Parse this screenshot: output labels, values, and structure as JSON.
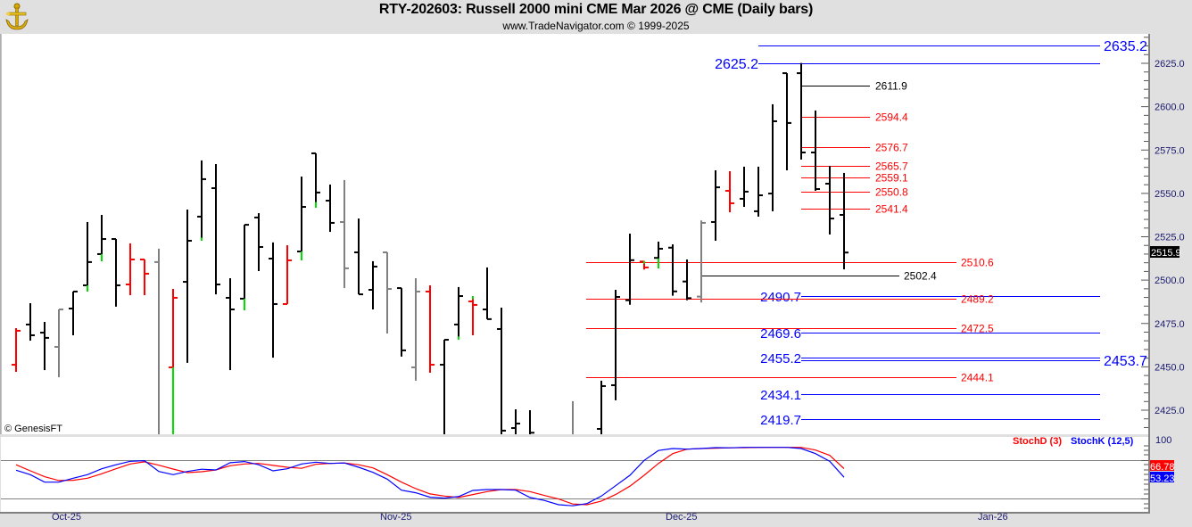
{
  "header": {
    "title": "RTY-202603:  Russell 2000 mini CME Mar 2026 @ CME  (Daily bars)",
    "subtitle": "www.TradeNavigator.com © 1999-2025",
    "logo_icon": "gold-anchor-logo-icon"
  },
  "watermark": "© GenesisFT",
  "colors": {
    "up_bar": "#000000",
    "down_bar": "#ff0000",
    "neutral_bar": "#808080",
    "green_mark": "#00e000",
    "level_blue": "#0000ff",
    "level_red": "#ff0000",
    "level_black": "#000000",
    "stochD": "#ff0000",
    "stochK": "#0000ff"
  },
  "chart_data": [
    {
      "type": "ohlc",
      "ylim": [
        2400,
        2645
      ],
      "yticks": [
        "2625.0",
        "2600.0",
        "2575.0",
        "2550.0",
        "2525.0",
        "2500.0",
        "2475.0",
        "2450.0",
        "2425.0"
      ],
      "ytick_values": [
        2625,
        2600,
        2575,
        2550,
        2525,
        2500,
        2475,
        2450,
        2425
      ],
      "xtick_labels": [
        "Oct-25",
        "Nov-25",
        "Dec-25",
        "Jan-26"
      ],
      "last_price": "2515.9",
      "bar_colors": {
        "k": "#000000",
        "r": "#ff0000",
        "s": "#808080"
      },
      "bars_ohlc_color_green": [
        [
          2451.2,
          2472.3,
          2447.1,
          2470.8,
          "r"
        ],
        [
          2474.4,
          2486.7,
          2465.1,
          2468.2,
          "k"
        ],
        [
          2469.7,
          2475.9,
          2448.1,
          2466.7,
          "k"
        ],
        [
          2461.5,
          2483.1,
          2444.0,
          2483.1,
          "s"
        ],
        [
          2483.6,
          2493.4,
          2468.2,
          2493.4,
          "k"
        ],
        [
          2497.0,
          2533.5,
          2493.4,
          2510.4,
          "k",
          [
            2493.4,
            2497.0
          ]
        ],
        [
          2515.0,
          2537.6,
          2510.9,
          2523.7,
          "k",
          [
            2510.9,
            2515.0
          ]
        ],
        [
          2523.7,
          2523.7,
          2484.7,
          2497.0,
          "k"
        ],
        [
          2497.5,
          2521.2,
          2491.3,
          2511.9,
          "r"
        ],
        [
          2511.9,
          2511.9,
          2491.3,
          2503.7,
          "r"
        ],
        [
          2510.4,
          2518.1,
          2400,
          2410,
          "s"
        ],
        [
          2449.7,
          2494.9,
          2400,
          2489.8,
          "r",
          [
            2400,
            2449.7
          ]
        ],
        [
          2499.0,
          2540.7,
          2452.3,
          2522.7,
          "k"
        ],
        [
          2536.6,
          2569.0,
          2522.7,
          2558.2,
          "k",
          [
            2522.7,
            2524.5
          ]
        ],
        [
          2553.0,
          2566.9,
          2491.8,
          2497.5,
          "k"
        ],
        [
          2489.8,
          2501.1,
          2448.1,
          2483.1,
          "k"
        ],
        [
          2489.3,
          2531.9,
          2482.6,
          2531.9,
          "k",
          [
            2482.6,
            2489.3
          ]
        ],
        [
          2536.1,
          2538.6,
          2505.2,
          2519.1,
          "k"
        ],
        [
          2512.4,
          2521.7,
          2455.3,
          2486.2,
          "k"
        ],
        [
          2486.2,
          2520.1,
          2486.2,
          2511.4,
          "r"
        ],
        [
          2516.5,
          2559.7,
          2511.4,
          2542.2,
          "k",
          [
            2511.4,
            2516.5
          ]
        ],
        [
          2573.1,
          2573.1,
          2541.7,
          2550.5,
          "k",
          [
            2541.7,
            2545.0
          ]
        ],
        [
          2545.8,
          2555.1,
          2527.8,
          2533.0,
          "k"
        ],
        [
          2533.5,
          2557.7,
          2495.4,
          2506.8,
          "s"
        ],
        [
          2516.0,
          2535.5,
          2491.8,
          2491.8,
          "k"
        ],
        [
          2494.4,
          2510.9,
          2483.1,
          2507.8,
          "k"
        ],
        [
          2516.0,
          2516.0,
          2469.2,
          2494.9,
          "s"
        ],
        [
          2495.4,
          2495.4,
          2455.9,
          2459.5,
          "k"
        ],
        [
          2449.7,
          2501.1,
          2442.0,
          2493.4,
          "s"
        ],
        [
          2493.4,
          2497.0,
          2446.6,
          2451.2,
          "r"
        ],
        [
          2451.2,
          2465.6,
          2400,
          2465.6,
          "k"
        ],
        [
          2474.4,
          2496.0,
          2465.6,
          2490.8,
          "k",
          [
            2465.6,
            2467.5
          ]
        ],
        [
          2487.7,
          2490.8,
          2468.2,
          2485.7,
          "r",
          [
            2489.0,
            2490.8
          ]
        ],
        [
          2483.1,
          2507.3,
          2477.5,
          2477.5,
          "k"
        ],
        [
          2471.8,
          2484.1,
          2400,
          2413.2,
          "k"
        ],
        [
          2414.7,
          2425.5,
          2400,
          2417.3,
          "k"
        ],
        [
          2410,
          2425.0,
          2400,
          2412,
          "k"
        ],
        null,
        null,
        [
          2405,
          2430.2,
          2400,
          2410,
          "s"
        ],
        null,
        [
          2414.2,
          2442.0,
          2400,
          2438.9,
          "k"
        ],
        [
          2439.4,
          2494.4,
          2430.7,
          2490.3,
          "k"
        ],
        [
          2488.4,
          2526.8,
          2485.8,
          2511.5,
          "k"
        ],
        [
          2510.7,
          2511.0,
          2506.1,
          2507.3,
          "r",
          [
            2509.5,
            2511.0
          ]
        ],
        [
          2512.8,
          2522.2,
          2506.8,
          2518.1,
          "k",
          [
            2506.8,
            2512.5
          ]
        ],
        [
          2518.7,
          2520.6,
          2491.0,
          2493.5,
          "k"
        ],
        [
          2499.2,
          2511.9,
          2488.4,
          2489.6,
          "k"
        ],
        [
          2490.5,
          2534.4,
          2487.1,
          2533.0,
          "s"
        ],
        [
          2533.5,
          2563.3,
          2522.7,
          2553.5,
          "k"
        ],
        [
          2551.5,
          2562.8,
          2539.1,
          2544.3,
          "r"
        ],
        [
          2546.9,
          2565.4,
          2542.2,
          2551.0,
          "k"
        ],
        [
          2539.7,
          2565.4,
          2536.6,
          2548.9,
          "k"
        ],
        [
          2549.9,
          2601.4,
          2539.7,
          2591.6,
          "k"
        ],
        [
          2619.3,
          2619.3,
          2563.3,
          2590.6,
          "k"
        ],
        [
          2619.3,
          2625.2,
          2569.5,
          2573.6,
          "k"
        ],
        [
          2573.6,
          2597.8,
          2551.5,
          2552.5,
          "k"
        ],
        [
          2555.6,
          2565.9,
          2526.3,
          2535.5,
          "k"
        ],
        [
          2537.6,
          2561.8,
          2506.2,
          2515.9,
          "k"
        ]
      ],
      "levels": [
        {
          "value": 2635.2,
          "label": "2635.2",
          "color": "blue"
        },
        {
          "value": 2625.2,
          "label": "2625.2",
          "color": "blue"
        },
        {
          "value": 2611.9,
          "label": "2611.9",
          "color": "black"
        },
        {
          "value": 2594.4,
          "label": "2594.4",
          "color": "red"
        },
        {
          "value": 2576.7,
          "label": "2576.7",
          "color": "red"
        },
        {
          "value": 2565.7,
          "label": "2565.7",
          "color": "red"
        },
        {
          "value": 2559.1,
          "label": "2559.1",
          "color": "red"
        },
        {
          "value": 2550.8,
          "label": "2550.8",
          "color": "red"
        },
        {
          "value": 2541.4,
          "label": "2541.4",
          "color": "red"
        },
        {
          "value": 2510.6,
          "label": "2510.6",
          "color": "red"
        },
        {
          "value": 2502.4,
          "label": "2502.4",
          "color": "black"
        },
        {
          "value": 2490.7,
          "label": "2490.7",
          "color": "blue"
        },
        {
          "value": 2489.2,
          "label": "2489.2",
          "color": "red"
        },
        {
          "value": 2472.5,
          "label": "2472.5",
          "color": "red"
        },
        {
          "value": 2469.6,
          "label": "2469.6",
          "color": "blue"
        },
        {
          "value": 2455.2,
          "label": "2455.2",
          "color": "blue"
        },
        {
          "value": 2453.7,
          "label": "2453.7",
          "color": "blue"
        },
        {
          "value": 2444.1,
          "label": "2444.1",
          "color": "red"
        },
        {
          "value": 2434.1,
          "label": "2434.1",
          "color": "blue"
        },
        {
          "value": 2419.7,
          "label": "2419.7",
          "color": "blue"
        }
      ]
    },
    {
      "type": "line",
      "ylim": [
        0,
        100
      ],
      "reference_lines": [
        80,
        20
      ],
      "ytick_label": "100",
      "series": [
        {
          "name": "StochD (3)",
          "color": "#ff0000",
          "last": "66.78",
          "values": [
            72.7,
            63.3,
            54,
            48,
            48.4,
            51.7,
            58.7,
            66.5,
            74,
            77.3,
            72.1,
            66.1,
            60.5,
            61.9,
            64.7,
            71.2,
            74,
            74.9,
            71.7,
            68.9,
            67.1,
            73.5,
            74.9,
            75.5,
            72.7,
            67.9,
            57.3,
            45.6,
            35.4,
            27.1,
            23.8,
            21.5,
            26.1,
            30.8,
            34,
            34,
            30.8,
            24.7,
            19.1,
            11.3,
            10.3,
            15.9,
            26.1,
            39.2,
            56.3,
            74.9,
            90.2,
            97.2,
            98.2,
            98.6,
            99.2,
            99.5,
            99.8,
            100,
            100,
            100,
            95.8,
            87.4,
            66.78
          ]
        },
        {
          "name": "StochK (12,5)",
          "color": "#0000ff",
          "last": "53.23",
          "values": [
            64.3,
            57.3,
            45.6,
            45.6,
            51.7,
            57.3,
            66.5,
            72.7,
            78.2,
            79.1,
            62.3,
            57.3,
            62.3,
            65.7,
            64.7,
            75.9,
            77.7,
            72.7,
            63.3,
            66.5,
            74,
            76.8,
            74.9,
            75.5,
            68.9,
            60.9,
            50.3,
            33,
            28.9,
            21.9,
            20.5,
            22.9,
            32.6,
            34,
            34,
            33,
            21.5,
            16.9,
            10.3,
            8.5,
            12.1,
            23.8,
            40,
            56.3,
            79.6,
            95,
            98.2,
            97.2,
            98.2,
            99.6,
            99.2,
            100,
            100,
            100,
            100,
            98.2,
            90.2,
            78.2,
            53.23
          ]
        }
      ]
    }
  ]
}
